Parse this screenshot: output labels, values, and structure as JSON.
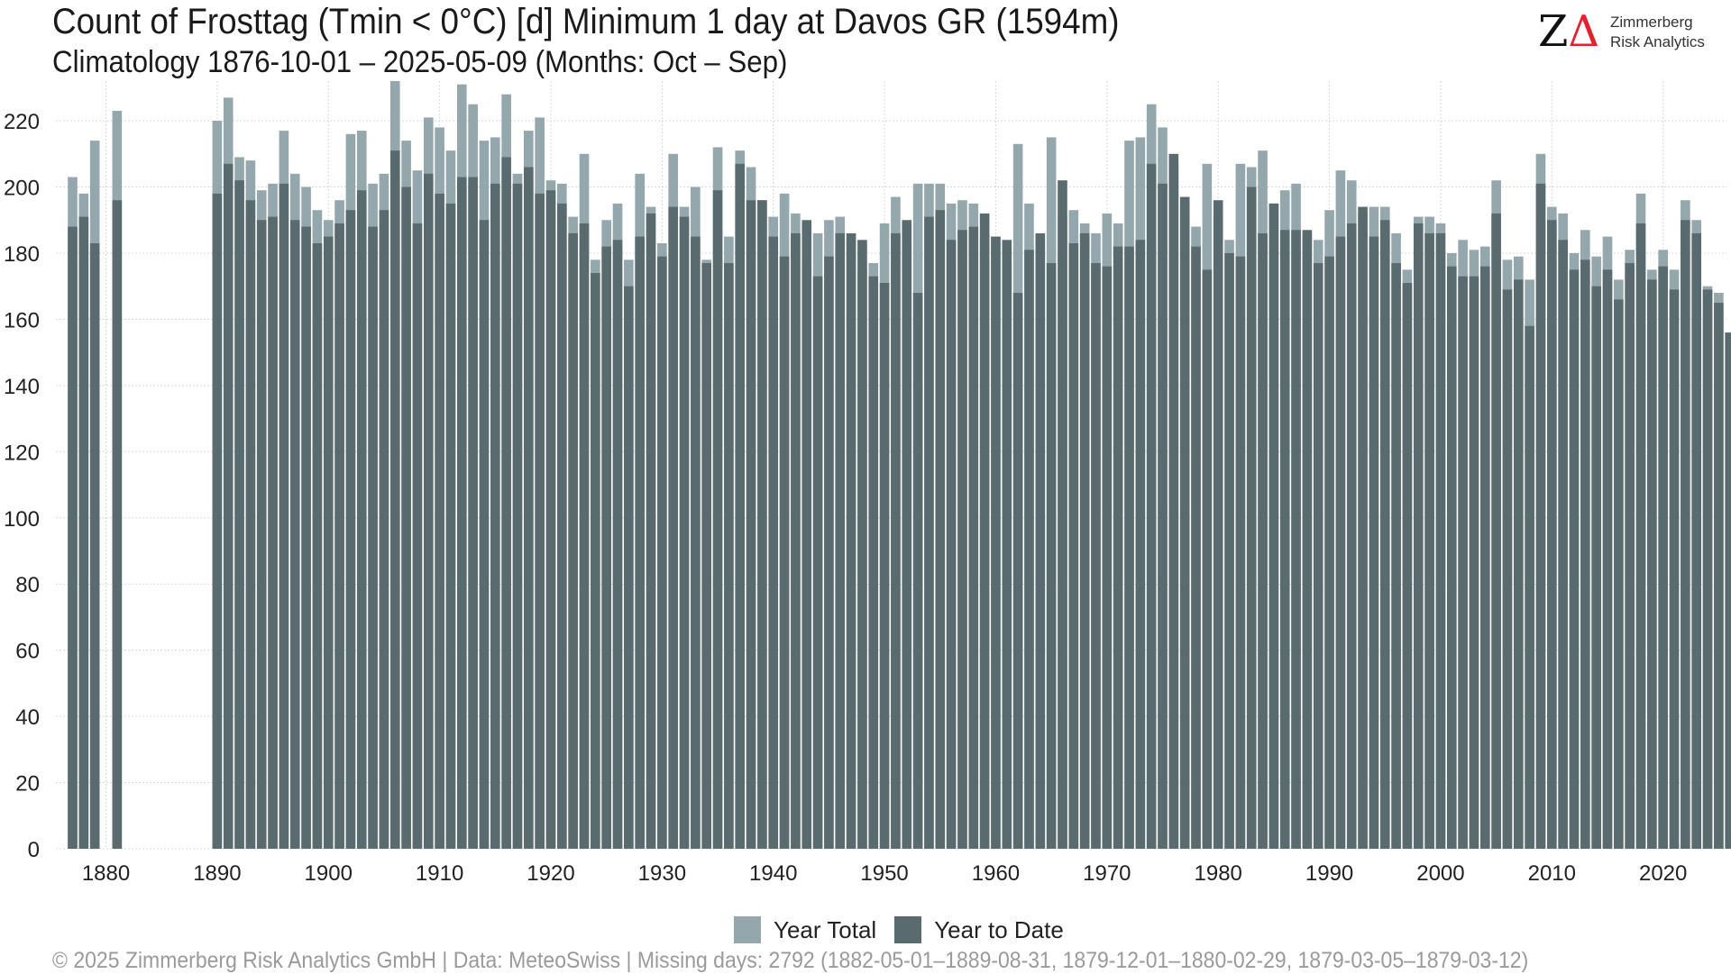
{
  "title": "Count of Frosttag (Tmin < 0°C) [d] Minimum 1 day at Davos  GR (1594m)",
  "subtitle": "Climatology 1876-10-01 – 2025-05-09 (Months: Oct – Sep)",
  "logo": {
    "mark_z": "Z",
    "mark_delta": "Δ",
    "line1": "Zimmerberg",
    "line2": "Risk Analytics"
  },
  "footer": "©  2025 Zimmerberg Risk Analytics GmbH | Data: MeteoSwiss | Missing days: 2792 (1882-05-01–1889-08-31, 1879-12-01–1880-02-29, 1879-03-05–1879-03-12)",
  "colors": {
    "year_total": "#94a7ad",
    "year_to_date": "#5a6b70",
    "grid": "#d9d9d9"
  },
  "chart_data": {
    "type": "bar",
    "x_start": 1877,
    "ylim": [
      0,
      232
    ],
    "xlim": [
      1875.5,
      2025.7
    ],
    "yticks": [
      0,
      20,
      40,
      60,
      80,
      100,
      120,
      140,
      160,
      180,
      200,
      220
    ],
    "xticks": [
      1880,
      1890,
      1900,
      1910,
      1920,
      1930,
      1940,
      1950,
      1960,
      1970,
      1980,
      1990,
      2000,
      2010,
      2020
    ],
    "grid": true,
    "legend_position": "bottom",
    "series": [
      {
        "name": "Year Total",
        "values": [
          203,
          198,
          214,
          null,
          223,
          null,
          null,
          null,
          null,
          null,
          null,
          null,
          null,
          220,
          227,
          209,
          208,
          199,
          201,
          217,
          204,
          200,
          193,
          190,
          196,
          216,
          217,
          201,
          204,
          232,
          214,
          205,
          221,
          218,
          211,
          231,
          225,
          214,
          215,
          228,
          204,
          217,
          221,
          202,
          201,
          191,
          210,
          178,
          190,
          195,
          178,
          204,
          194,
          183,
          210,
          194,
          200,
          178,
          212,
          185,
          211,
          206,
          196,
          191,
          198,
          192,
          176,
          186,
          190,
          191,
          184,
          175,
          177,
          189,
          197,
          183,
          201,
          201,
          201,
          195,
          196,
          195,
          185,
          185,
          177,
          213,
          195,
          185,
          215,
          191,
          193,
          189,
          186,
          192,
          189,
          214,
          215,
          225,
          218,
          208,
          195,
          188,
          207,
          191,
          184,
          207,
          206,
          211,
          195,
          199,
          201,
          185,
          184,
          193,
          205,
          202,
          192,
          194,
          194,
          186,
          175,
          191,
          191,
          189,
          180,
          184,
          181,
          182,
          202,
          178,
          179,
          172,
          210,
          194,
          192,
          180,
          187,
          179,
          185,
          172,
          181,
          198,
          175,
          181,
          175,
          196,
          190,
          170,
          168,
          156
        ]
      },
      {
        "name": "Year to Date",
        "values": [
          188,
          191,
          183,
          null,
          196,
          null,
          null,
          null,
          null,
          null,
          null,
          null,
          null,
          198,
          207,
          202,
          196,
          190,
          191,
          201,
          190,
          188,
          183,
          185,
          189,
          193,
          199,
          188,
          193,
          211,
          200,
          189,
          204,
          198,
          195,
          203,
          203,
          190,
          201,
          209,
          201,
          206,
          198,
          199,
          195,
          186,
          189,
          174,
          182,
          184,
          170,
          185,
          192,
          179,
          194,
          191,
          185,
          177,
          199,
          177,
          207,
          196,
          196,
          185,
          179,
          186,
          190,
          173,
          179,
          186,
          186,
          184,
          173,
          171,
          186,
          190,
          168,
          191,
          193,
          184,
          187,
          188,
          192,
          185,
          184,
          168,
          181,
          186,
          177,
          202,
          183,
          186,
          177,
          176,
          182,
          182,
          184,
          207,
          201,
          210,
          197,
          182,
          175,
          196,
          180,
          179,
          200,
          186,
          195,
          187,
          187,
          187,
          177,
          179,
          185,
          189,
          194,
          185,
          190,
          177,
          171,
          189,
          186,
          186,
          176,
          173,
          173,
          176,
          192,
          169,
          172,
          158,
          201,
          190,
          184,
          175,
          178,
          170,
          175,
          166,
          177,
          189,
          172,
          176,
          169,
          190,
          186,
          169,
          165,
          156
        ]
      }
    ]
  }
}
